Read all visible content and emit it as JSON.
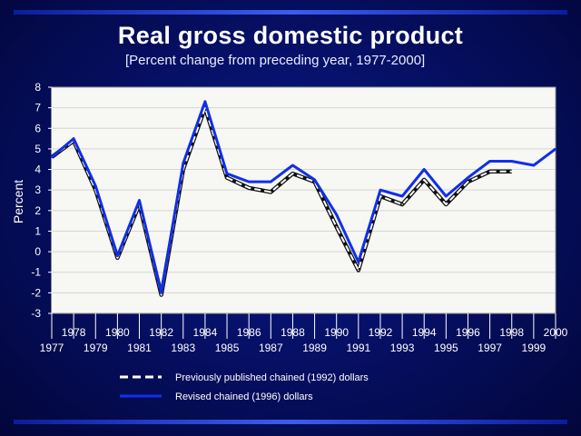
{
  "chart_data": {
    "type": "line",
    "title": "Real gross domestic product",
    "subtitle": "[Percent change from preceding year, 1977-2000]",
    "xlabel": "",
    "ylabel": "Percent",
    "ylim": [
      -3,
      8
    ],
    "yticks": [
      "8",
      "7",
      "6",
      "5",
      "4",
      "3",
      "2",
      "1",
      "0",
      "-1",
      "-2",
      "-3"
    ],
    "xticks_upper": [
      "1978",
      "1980",
      "1982",
      "1984",
      "1986",
      "1988",
      "1990",
      "1992",
      "1994",
      "1996",
      "1998",
      "2000"
    ],
    "xticks_lower": [
      "1977",
      "1979",
      "1981",
      "1983",
      "1985",
      "1987",
      "1989",
      "1991",
      "1993",
      "1995",
      "1997",
      "1999"
    ],
    "grid": true,
    "legend_placement": "bottom",
    "x": [
      1977,
      1978,
      1979,
      1980,
      1981,
      1982,
      1983,
      1984,
      1985,
      1986,
      1987,
      1988,
      1989,
      1990,
      1991,
      1992,
      1993,
      1994,
      1995,
      1996,
      1997,
      1998,
      1999,
      2000
    ],
    "series": [
      {
        "name": "Previously published chained (1992) dollars",
        "color": "#ffffff",
        "style": "dashed",
        "x": [
          1977,
          1978,
          1979,
          1980,
          1981,
          1982,
          1983,
          1984,
          1985,
          1986,
          1987,
          1988,
          1989,
          1990,
          1991,
          1992,
          1993,
          1994,
          1995,
          1996,
          1997,
          1998
        ],
        "values": [
          4.6,
          5.4,
          3.0,
          -0.3,
          2.3,
          -2.1,
          4.0,
          7.0,
          3.6,
          3.1,
          2.9,
          3.8,
          3.4,
          1.2,
          -0.9,
          2.7,
          2.3,
          3.5,
          2.3,
          3.4,
          3.9,
          3.9
        ]
      },
      {
        "name": "Revised chained (1996) dollars",
        "color": "#1030e8",
        "style": "solid",
        "x": [
          1977,
          1978,
          1979,
          1980,
          1981,
          1982,
          1983,
          1984,
          1985,
          1986,
          1987,
          1988,
          1989,
          1990,
          1991,
          1992,
          1993,
          1994,
          1995,
          1996,
          1997,
          1998,
          1999,
          2000
        ],
        "values": [
          4.6,
          5.5,
          3.2,
          -0.2,
          2.5,
          -2.0,
          4.3,
          7.3,
          3.8,
          3.4,
          3.4,
          4.2,
          3.5,
          1.8,
          -0.5,
          3.0,
          2.7,
          4.0,
          2.7,
          3.6,
          4.4,
          4.4,
          4.2,
          5.0
        ]
      }
    ]
  }
}
